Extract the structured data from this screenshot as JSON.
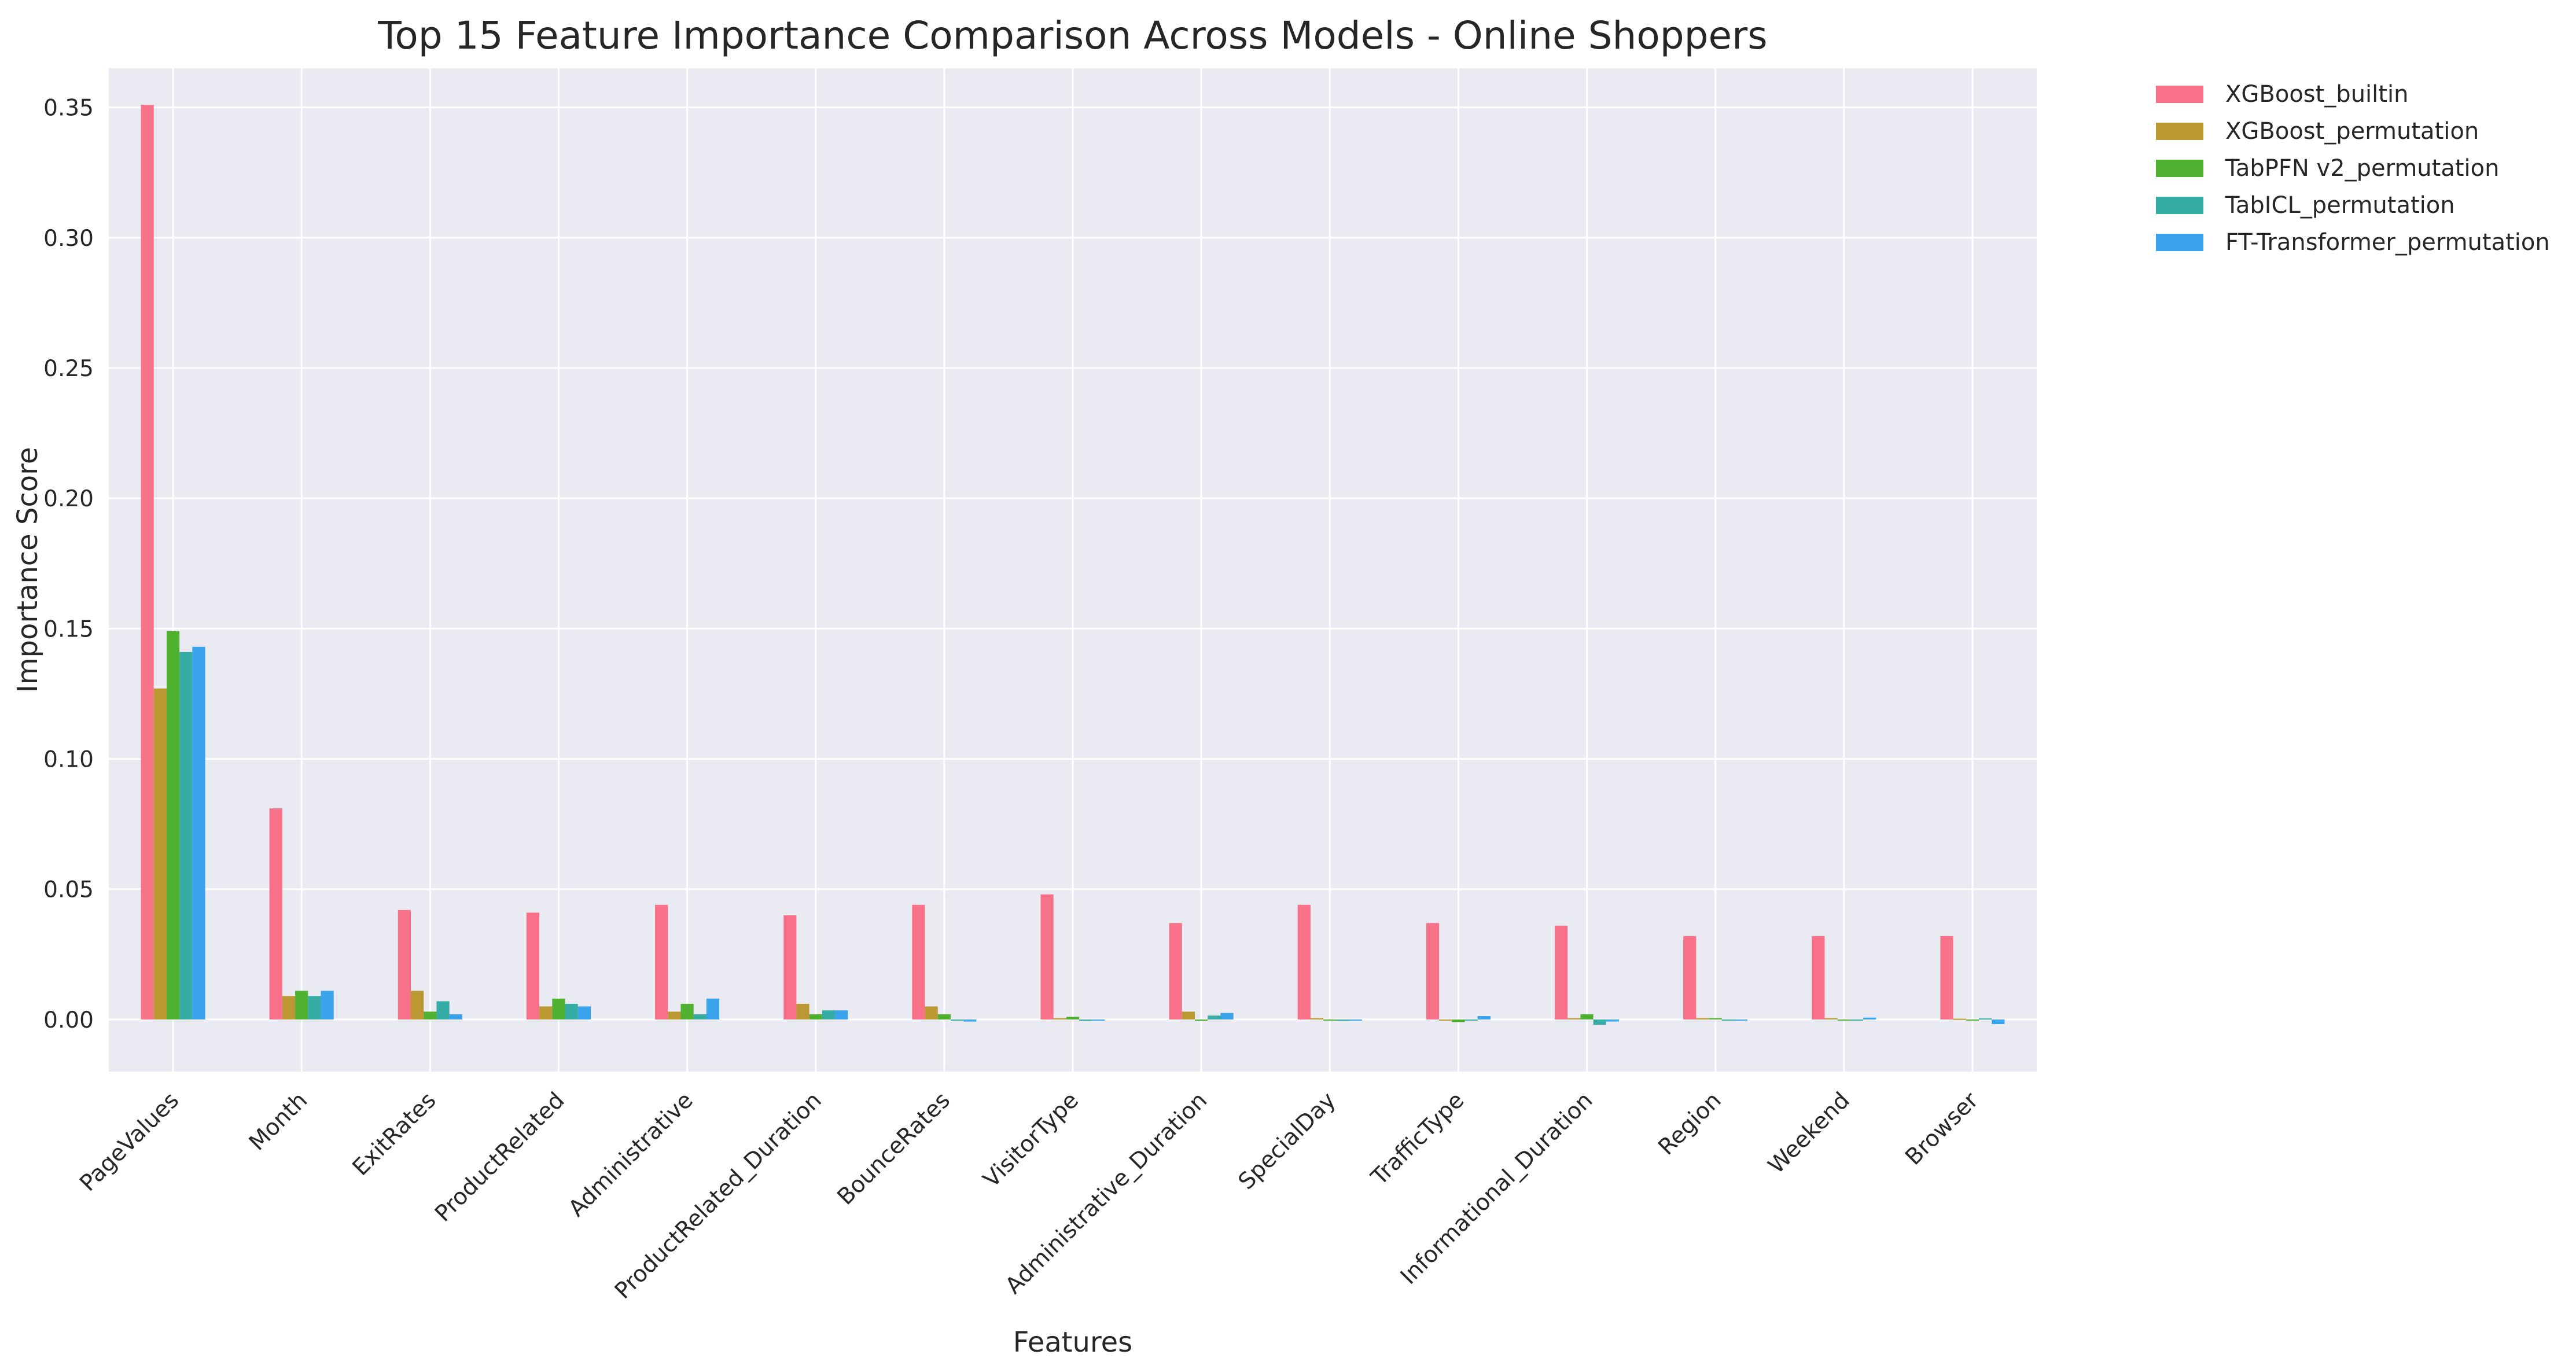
{
  "chart_data": {
    "type": "bar",
    "title": "Top 15 Feature Importance Comparison Across Models - Online Shoppers",
    "xlabel": "Features",
    "ylabel": "Importance Score",
    "ylim": [
      -0.02,
      0.365
    ],
    "yticks": [
      0.0,
      0.05,
      0.1,
      0.15,
      0.2,
      0.25,
      0.3,
      0.35
    ],
    "ytick_labels": [
      "0.00",
      "0.05",
      "0.10",
      "0.15",
      "0.20",
      "0.25",
      "0.30",
      "0.35"
    ],
    "grid": true,
    "legend_position": "outside-top-right",
    "categories": [
      "PageValues",
      "Month",
      "ExitRates",
      "ProductRelated",
      "Administrative",
      "ProductRelated_Duration",
      "BounceRates",
      "VisitorType",
      "Administrative_Duration",
      "SpecialDay",
      "TrafficType",
      "Informational_Duration",
      "Region",
      "Weekend",
      "Browser"
    ],
    "series": [
      {
        "name": "XGBoost_builtin",
        "color": "#f77189",
        "values": [
          0.351,
          0.081,
          0.042,
          0.041,
          0.044,
          0.04,
          0.044,
          0.048,
          0.037,
          0.044,
          0.037,
          0.036,
          0.032,
          0.032,
          0.032
        ]
      },
      {
        "name": "XGBoost_permutation",
        "color": "#bb9832",
        "values": [
          0.127,
          0.009,
          0.011,
          0.005,
          0.003,
          0.006,
          0.005,
          0.0005,
          0.003,
          0.0005,
          0.0,
          0.0005,
          0.0005,
          0.0005,
          0.0003
        ]
      },
      {
        "name": "TabPFN v2_permutation",
        "color": "#50b131",
        "values": [
          0.149,
          0.011,
          0.003,
          0.008,
          0.006,
          0.002,
          0.002,
          0.001,
          -0.0005,
          -0.0003,
          -0.001,
          0.002,
          0.0005,
          0.0,
          0.0
        ]
      },
      {
        "name": "TabICL_permutation",
        "color": "#36ada4",
        "values": [
          0.141,
          0.009,
          0.007,
          0.006,
          0.002,
          0.0035,
          0.0,
          -0.0005,
          0.0015,
          -0.0005,
          0.0,
          -0.002,
          0.0,
          0.0,
          0.0004
        ]
      },
      {
        "name": "FT-Transformer_permutation",
        "color": "#3ba3ec",
        "values": [
          0.143,
          0.011,
          0.002,
          0.005,
          0.008,
          0.0035,
          -0.0008,
          -0.0003,
          0.0025,
          -0.0003,
          0.0013,
          -0.0008,
          -0.0003,
          0.0007,
          -0.0018
        ]
      }
    ]
  }
}
